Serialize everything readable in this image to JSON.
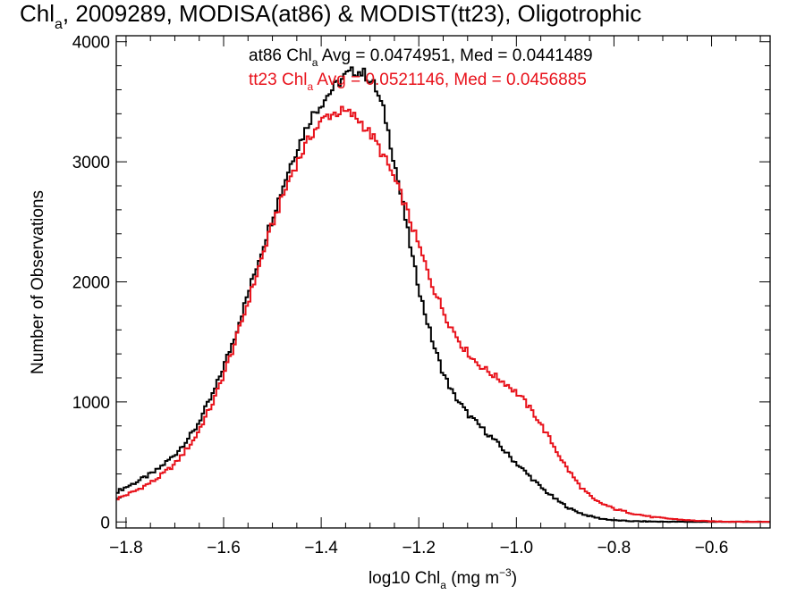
{
  "chart_data": {
    "type": "line",
    "title_main": "Chl",
    "title_sub": "a",
    "title_rest": ", 2009289, MODISA(at86) & MODIST(tt23), Oligotrophic",
    "xlabel_main": "log10 Chl",
    "xlabel_sub": "a",
    "xlabel_unit": " (mg m",
    "xlabel_sup": "−3",
    "xlabel_close": ")",
    "ylabel": "Number of Observations",
    "xlim": [
      -1.82,
      -0.48
    ],
    "ylim": [
      -50,
      4050
    ],
    "x_ticks": [
      -1.8,
      -1.6,
      -1.4,
      -1.2,
      -1.0,
      -0.8,
      -0.6
    ],
    "x_tick_labels": [
      "−1.8",
      "−1.6",
      "−1.4",
      "−1.2",
      "−1.0",
      "−0.8",
      "−0.6"
    ],
    "y_ticks": [
      0,
      1000,
      2000,
      3000,
      4000
    ],
    "y_tick_labels": [
      "0",
      "1000",
      "2000",
      "3000",
      "4000"
    ],
    "legend": [
      {
        "color": "#000000",
        "prefix": "at86 Chl",
        "sub": "a",
        "suffix": " Avg = 0.0474951, Med = 0.0441489"
      },
      {
        "color": "#e8121b",
        "prefix": "tt23 Chl",
        "sub": "a",
        "suffix": " Avg = 0.0521146, Med = 0.0456885"
      }
    ],
    "series": [
      {
        "name": "at86",
        "color": "#000000",
        "points": [
          [
            -1.82,
            250
          ],
          [
            -1.78,
            330
          ],
          [
            -1.74,
            420
          ],
          [
            -1.7,
            560
          ],
          [
            -1.66,
            760
          ],
          [
            -1.62,
            1080
          ],
          [
            -1.58,
            1510
          ],
          [
            -1.54,
            2030
          ],
          [
            -1.5,
            2540
          ],
          [
            -1.46,
            3010
          ],
          [
            -1.42,
            3380
          ],
          [
            -1.38,
            3590
          ],
          [
            -1.35,
            3720
          ],
          [
            -1.33,
            3760
          ],
          [
            -1.31,
            3730
          ],
          [
            -1.29,
            3630
          ],
          [
            -1.27,
            3400
          ],
          [
            -1.25,
            3000
          ],
          [
            -1.23,
            2580
          ],
          [
            -1.21,
            2140
          ],
          [
            -1.19,
            1780
          ],
          [
            -1.17,
            1480
          ],
          [
            -1.15,
            1240
          ],
          [
            -1.13,
            1070
          ],
          [
            -1.1,
            900
          ],
          [
            -1.07,
            780
          ],
          [
            -1.04,
            660
          ],
          [
            -1.01,
            530
          ],
          [
            -0.98,
            410
          ],
          [
            -0.95,
            290
          ],
          [
            -0.92,
            190
          ],
          [
            -0.89,
            110
          ],
          [
            -0.86,
            60
          ],
          [
            -0.83,
            30
          ],
          [
            -0.8,
            14
          ],
          [
            -0.76,
            6
          ],
          [
            -0.7,
            2
          ],
          [
            -0.6,
            0
          ],
          [
            -0.48,
            0
          ]
        ]
      },
      {
        "name": "tt23",
        "color": "#e8121b",
        "points": [
          [
            -1.82,
            190
          ],
          [
            -1.78,
            260
          ],
          [
            -1.74,
            350
          ],
          [
            -1.7,
            480
          ],
          [
            -1.66,
            690
          ],
          [
            -1.62,
            1010
          ],
          [
            -1.58,
            1450
          ],
          [
            -1.54,
            1960
          ],
          [
            -1.5,
            2480
          ],
          [
            -1.46,
            2910
          ],
          [
            -1.42,
            3230
          ],
          [
            -1.39,
            3380
          ],
          [
            -1.36,
            3420
          ],
          [
            -1.34,
            3400
          ],
          [
            -1.32,
            3340
          ],
          [
            -1.29,
            3180
          ],
          [
            -1.26,
            2950
          ],
          [
            -1.23,
            2660
          ],
          [
            -1.2,
            2300
          ],
          [
            -1.17,
            1950
          ],
          [
            -1.14,
            1670
          ],
          [
            -1.11,
            1460
          ],
          [
            -1.08,
            1320
          ],
          [
            -1.05,
            1230
          ],
          [
            -1.02,
            1150
          ],
          [
            -0.99,
            1040
          ],
          [
            -0.96,
            880
          ],
          [
            -0.93,
            680
          ],
          [
            -0.9,
            470
          ],
          [
            -0.87,
            300
          ],
          [
            -0.84,
            180
          ],
          [
            -0.8,
            110
          ],
          [
            -0.76,
            70
          ],
          [
            -0.72,
            40
          ],
          [
            -0.68,
            25
          ],
          [
            -0.64,
            12
          ],
          [
            -0.6,
            5
          ],
          [
            -0.54,
            2
          ],
          [
            -0.48,
            0
          ]
        ]
      }
    ]
  }
}
